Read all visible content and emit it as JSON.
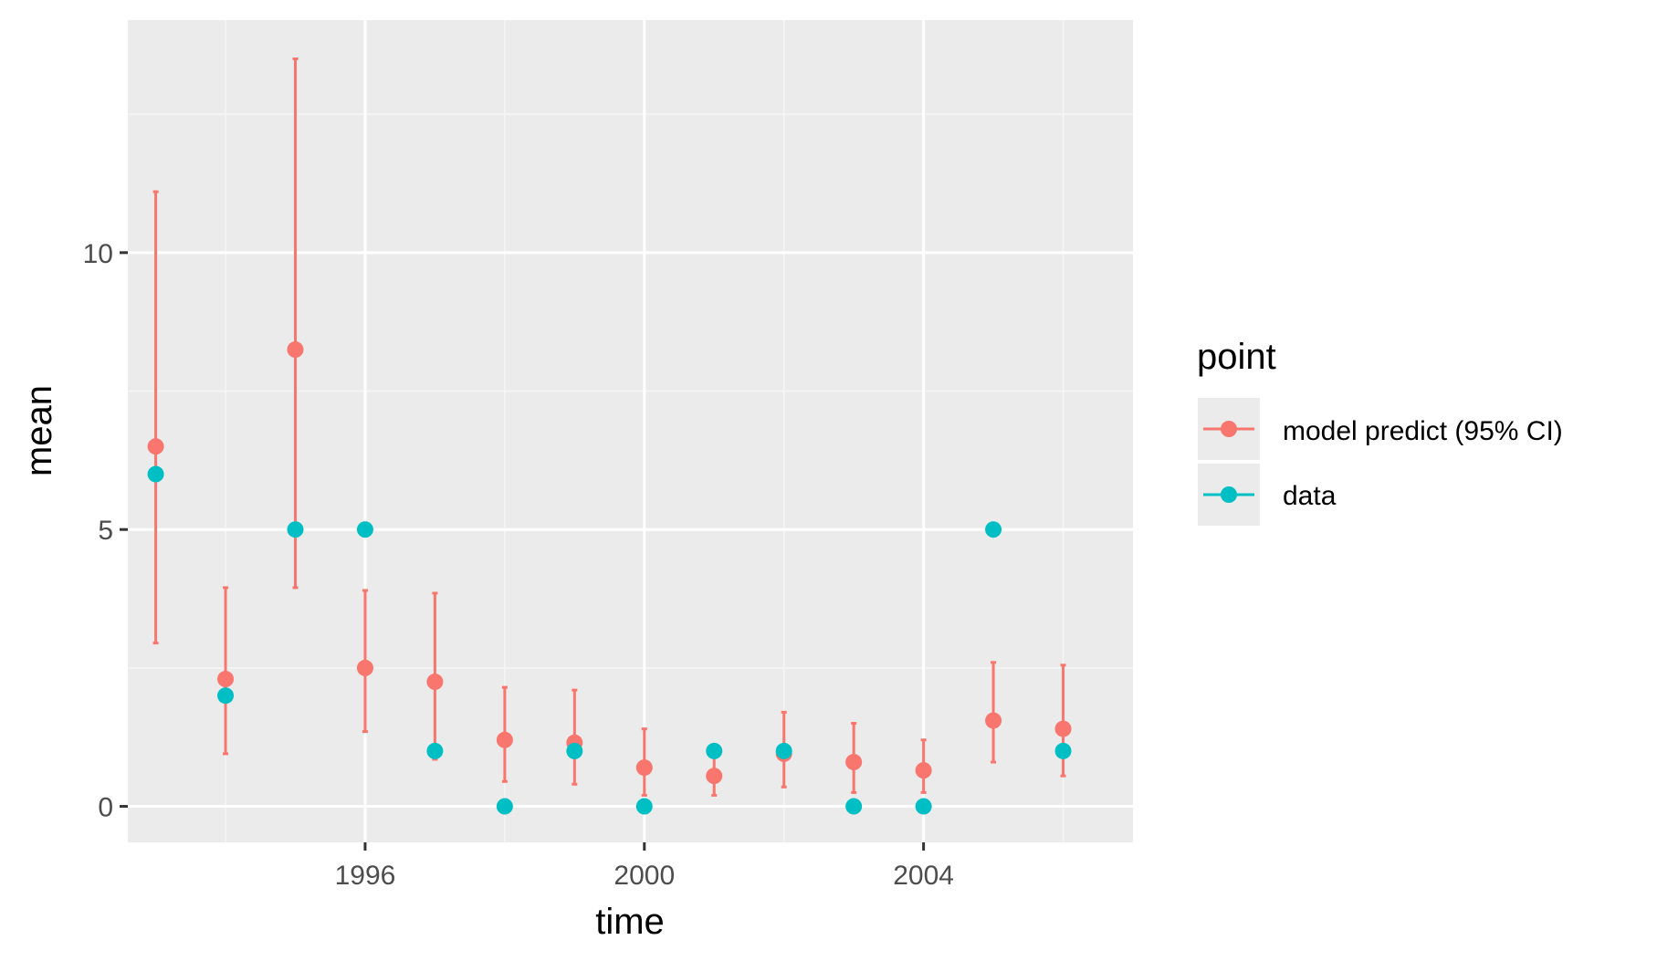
{
  "chart_data": {
    "type": "scatter",
    "title": "",
    "xlabel": "time",
    "ylabel": "mean",
    "xlim": [
      1992.6,
      2007.0
    ],
    "ylim": [
      -0.65,
      14.2
    ],
    "x_ticks": [
      1996,
      2000,
      2004
    ],
    "y_ticks": [
      0,
      5,
      10
    ],
    "x_tick_labels": [
      "1996",
      "2000",
      "2004"
    ],
    "y_tick_labels": [
      "0",
      "5",
      "10"
    ],
    "x_minor_grid": [
      1994,
      1998,
      2002,
      2006
    ],
    "y_minor_grid": [
      2.5,
      7.5,
      12.5
    ],
    "grid": true,
    "legend": {
      "title": "point",
      "placement": "right",
      "entries": [
        "model predict (95% CI)",
        "data"
      ]
    },
    "series": [
      {
        "name": "model predict (95% CI)",
        "color": "#F8766D",
        "points": [
          {
            "x": 1993,
            "y": 6.5,
            "lower": 2.95,
            "upper": 11.1
          },
          {
            "x": 1994,
            "y": 2.3,
            "lower": 0.95,
            "upper": 3.95
          },
          {
            "x": 1995,
            "y": 8.25,
            "lower": 3.95,
            "upper": 13.5
          },
          {
            "x": 1996,
            "y": 2.5,
            "lower": 1.35,
            "upper": 3.9
          },
          {
            "x": 1997,
            "y": 2.25,
            "lower": 0.85,
            "upper": 3.85
          },
          {
            "x": 1998,
            "y": 1.2,
            "lower": 0.45,
            "upper": 2.15
          },
          {
            "x": 1999,
            "y": 1.15,
            "lower": 0.4,
            "upper": 2.1
          },
          {
            "x": 2000,
            "y": 0.7,
            "lower": 0.2,
            "upper": 1.4
          },
          {
            "x": 2001,
            "y": 0.55,
            "lower": 0.2,
            "upper": 0.95
          },
          {
            "x": 2002,
            "y": 0.95,
            "lower": 0.35,
            "upper": 1.7
          },
          {
            "x": 2003,
            "y": 0.8,
            "lower": 0.25,
            "upper": 1.5
          },
          {
            "x": 2004,
            "y": 0.65,
            "lower": 0.25,
            "upper": 1.2
          },
          {
            "x": 2005,
            "y": 1.55,
            "lower": 0.8,
            "upper": 2.6
          },
          {
            "x": 2006,
            "y": 1.4,
            "lower": 0.55,
            "upper": 2.55
          }
        ]
      },
      {
        "name": "data",
        "color": "#00BFC4",
        "points": [
          {
            "x": 1993,
            "y": 6
          },
          {
            "x": 1994,
            "y": 2
          },
          {
            "x": 1995,
            "y": 5
          },
          {
            "x": 1996,
            "y": 5
          },
          {
            "x": 1997,
            "y": 1
          },
          {
            "x": 1998,
            "y": 0
          },
          {
            "x": 1999,
            "y": 1
          },
          {
            "x": 2000,
            "y": 0
          },
          {
            "x": 2001,
            "y": 1
          },
          {
            "x": 2002,
            "y": 1
          },
          {
            "x": 2003,
            "y": 0
          },
          {
            "x": 2004,
            "y": 0
          },
          {
            "x": 2005,
            "y": 5
          },
          {
            "x": 2006,
            "y": 1
          }
        ]
      }
    ],
    "colors": {
      "panel_background": "#EBEBEB",
      "grid_major": "#FFFFFF",
      "grid_minor": "#F5F5F5",
      "axis_tick": "#333333",
      "tick_text": "#4D4D4D"
    }
  }
}
